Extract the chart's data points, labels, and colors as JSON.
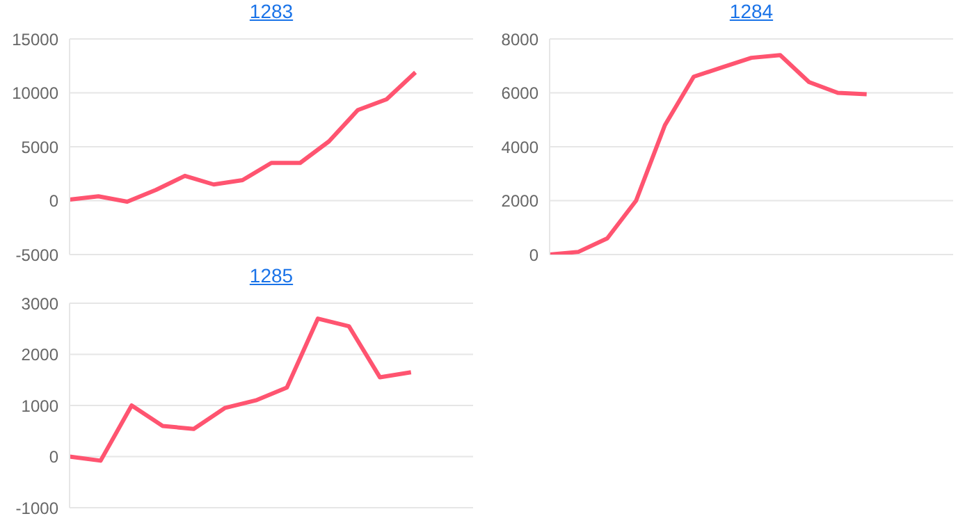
{
  "chart_data": [
    {
      "type": "line",
      "title": "1283",
      "categories": [
        null,
        null,
        null,
        null,
        null,
        null,
        null,
        null,
        null,
        null,
        null,
        null,
        null,
        null,
        null
      ],
      "series": [
        {
          "color": "#ff5470",
          "values": [
            100,
            400,
            -100,
            1000,
            2300,
            1500,
            1900,
            3500,
            3500,
            5500,
            8400,
            9400,
            11900,
            null,
            null
          ]
        }
      ],
      "ylim": [
        -5000,
        15000
      ],
      "yticks": [
        -5000,
        0,
        5000,
        10000,
        15000
      ],
      "grid": "y",
      "legend": false,
      "tick_labels": "y",
      "marker": "none",
      "line_style": "solid"
    },
    {
      "type": "line",
      "title": "1284",
      "categories": [
        null,
        null,
        null,
        null,
        null,
        null,
        null,
        null,
        null,
        null,
        null,
        null,
        null,
        null,
        null
      ],
      "series": [
        {
          "color": "#ff5470",
          "values": [
            0,
            100,
            600,
            2000,
            4800,
            6600,
            6950,
            7300,
            7400,
            6400,
            6000,
            5950,
            null,
            null,
            null
          ]
        }
      ],
      "ylim": [
        0,
        8000
      ],
      "yticks": [
        0,
        2000,
        4000,
        6000,
        8000
      ],
      "grid": "y",
      "legend": false,
      "tick_labels": "y",
      "marker": "none",
      "line_style": "solid"
    },
    {
      "type": "line",
      "title": "1285",
      "categories": [
        null,
        null,
        null,
        null,
        null,
        null,
        null,
        null,
        null,
        null,
        null,
        null,
        null,
        null
      ],
      "series": [
        {
          "color": "#ff5470",
          "values": [
            0,
            -80,
            1000,
            600,
            540,
            950,
            1100,
            1350,
            2700,
            2550,
            1550,
            1650,
            null,
            null
          ]
        }
      ],
      "ylim": [
        -1000,
        3000
      ],
      "yticks": [
        -1000,
        0,
        1000,
        2000,
        3000
      ],
      "grid": "y",
      "legend": false,
      "tick_labels": "y",
      "marker": "none",
      "line_style": "solid"
    }
  ]
}
